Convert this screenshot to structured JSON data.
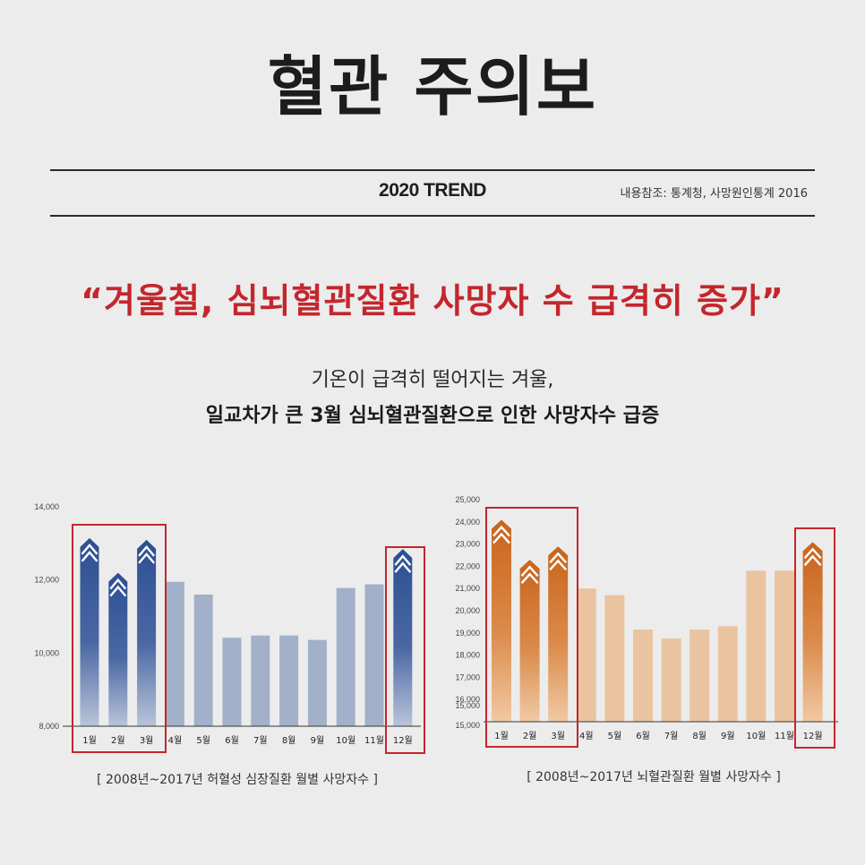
{
  "header": {
    "title": "혈관 주의보",
    "trend": "2020 TREND",
    "source": "내용참조: 통계청, 사망원인통계 2016"
  },
  "headline": "“겨울철, 심뇌혈관질환 사망자 수 급격히 증가”",
  "subtitle": {
    "line1": "기온이 급격히 떨어지는 겨울,",
    "line2": "일교차가 큰 3월 심뇌혈관질환으로 인한 사망자수 급증"
  },
  "colors": {
    "accent_red": "#c4262d",
    "blue_dark": "#2c4f92",
    "blue_light": "#a2b0c9",
    "orange_dark": "#c8641c",
    "orange_light": "#eac4a0"
  },
  "chart_data": [
    {
      "type": "bar",
      "categories": [
        "1월",
        "2월",
        "3월",
        "4월",
        "5월",
        "6월",
        "7월",
        "8월",
        "9월",
        "10월",
        "11월",
        "12월"
      ],
      "values": [
        13000,
        12050,
        12950,
        11950,
        11600,
        10420,
        10480,
        10480,
        10360,
        11780,
        11880,
        12700
      ],
      "highlighted": [
        0,
        1,
        2,
        11
      ],
      "ylim": [
        8000,
        14000
      ],
      "yticks": [
        "8,000",
        "10,000",
        "12,000",
        "14,000"
      ],
      "ytick_values": [
        8000,
        10000,
        12000,
        14000
      ],
      "caption": "[  2008년~2017년 허혈성 심장질환 월별 사망자수  ]"
    },
    {
      "type": "bar",
      "categories": [
        "1월",
        "2월",
        "3월",
        "4월",
        "5월",
        "6월",
        "7월",
        "8월",
        "9월",
        "10월",
        "11월",
        "12월"
      ],
      "values": [
        23850,
        22050,
        22650,
        21000,
        20700,
        19150,
        18750,
        19150,
        19300,
        21800,
        21800,
        22850
      ],
      "highlighted": [
        0,
        1,
        2,
        11
      ],
      "ylim": [
        15000,
        25000
      ],
      "yticks": [
        "15,000",
        "15,000",
        "16,000",
        "17,000",
        "18,000",
        "19,000",
        "20,000",
        "21,000",
        "22,000",
        "23,000",
        "24,000",
        "25,000"
      ],
      "ytick_values": [
        15000,
        15000,
        16000,
        17000,
        18000,
        19000,
        20000,
        21000,
        22000,
        23000,
        24000,
        25000
      ],
      "caption": "[  2008년~2017년 뇌혈관질환 월별 사망자수  ]"
    }
  ]
}
